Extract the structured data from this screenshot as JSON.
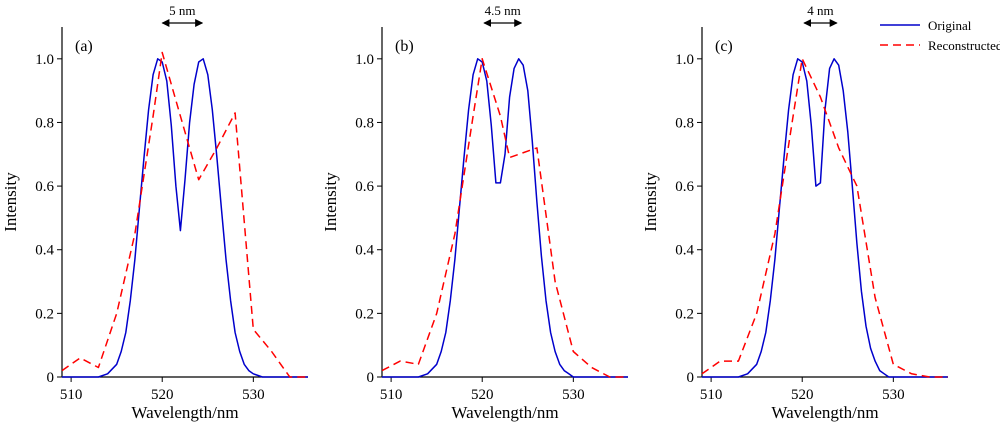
{
  "chart_data": [
    {
      "type": "line",
      "panel_label": "(a)",
      "separation_label": "5 nm",
      "xlabel": "Wavelength/nm",
      "ylabel": "Intensity",
      "xlim": [
        509,
        536
      ],
      "ylim": [
        0,
        1.1
      ],
      "xticks": [
        510,
        520,
        530
      ],
      "yticks": [
        0,
        0.2,
        0.4,
        0.6,
        0.8,
        1.0
      ],
      "ytick_labels": [
        "0",
        "0.2",
        "0.4",
        "0.6",
        "0.8",
        "1.0"
      ],
      "arrow_span": [
        519.8,
        524.6
      ],
      "series": [
        {
          "name": "Original",
          "color": "#0000cc",
          "style": "solid",
          "x": [
            509,
            510,
            511,
            512,
            513,
            514,
            515,
            515.5,
            516,
            516.5,
            517,
            517.5,
            518,
            518.5,
            519,
            519.5,
            520,
            520.5,
            521,
            521.5,
            522,
            522.5,
            523,
            523.5,
            524,
            524.5,
            525,
            525.5,
            526,
            526.5,
            527,
            527.5,
            528,
            528.5,
            529,
            529.5,
            530,
            531,
            532,
            533,
            536
          ],
          "y": [
            0,
            0,
            0,
            0,
            0,
            0.01,
            0.04,
            0.08,
            0.14,
            0.24,
            0.37,
            0.53,
            0.69,
            0.84,
            0.95,
            1.0,
            0.99,
            0.93,
            0.79,
            0.6,
            0.46,
            0.62,
            0.8,
            0.92,
            0.99,
            1.0,
            0.95,
            0.84,
            0.69,
            0.53,
            0.37,
            0.24,
            0.14,
            0.08,
            0.04,
            0.02,
            0.01,
            0,
            0,
            0,
            0
          ]
        },
        {
          "name": "Reconstructed",
          "color": "#ff0000",
          "style": "dashed",
          "x": [
            509,
            511,
            513,
            515,
            517,
            519,
            520,
            522,
            524,
            526,
            528,
            530,
            532,
            534,
            536
          ],
          "y": [
            0.02,
            0.06,
            0.03,
            0.2,
            0.45,
            0.82,
            1.02,
            0.82,
            0.62,
            0.72,
            0.83,
            0.15,
            0.08,
            0,
            0
          ]
        }
      ]
    },
    {
      "type": "line",
      "panel_label": "(b)",
      "separation_label": "4.5 nm",
      "xlabel": "Wavelength/nm",
      "ylabel": "Intensity",
      "xlim": [
        509,
        536
      ],
      "ylim": [
        0,
        1.1
      ],
      "xticks": [
        510,
        520,
        530
      ],
      "yticks": [
        0,
        0.2,
        0.4,
        0.6,
        0.8,
        1.0
      ],
      "ytick_labels": [
        "0",
        "0.2",
        "0.4",
        "0.6",
        "0.8",
        "1.0"
      ],
      "arrow_span": [
        520,
        524.5
      ],
      "series": [
        {
          "name": "Original",
          "color": "#0000cc",
          "style": "solid",
          "x": [
            509,
            510,
            511,
            512,
            513,
            514,
            515,
            515.5,
            516,
            516.5,
            517,
            517.5,
            518,
            518.5,
            519,
            519.5,
            520,
            520.5,
            521,
            521.5,
            522,
            522.5,
            523,
            523.5,
            524,
            524.5,
            525,
            525.5,
            526,
            526.5,
            527,
            527.5,
            528,
            528.5,
            529,
            529.5,
            530,
            531,
            532,
            533,
            536
          ],
          "y": [
            0,
            0,
            0,
            0,
            0,
            0.01,
            0.04,
            0.08,
            0.14,
            0.24,
            0.37,
            0.53,
            0.69,
            0.84,
            0.95,
            1.0,
            0.99,
            0.93,
            0.79,
            0.61,
            0.61,
            0.7,
            0.88,
            0.97,
            1.0,
            0.98,
            0.9,
            0.74,
            0.55,
            0.38,
            0.24,
            0.14,
            0.08,
            0.04,
            0.02,
            0.01,
            0,
            0,
            0,
            0,
            0
          ]
        },
        {
          "name": "Reconstructed",
          "color": "#ff0000",
          "style": "dashed",
          "x": [
            509,
            511,
            513,
            515,
            517,
            519,
            520,
            522,
            523,
            526,
            528,
            530,
            532,
            534,
            536
          ],
          "y": [
            0.02,
            0.05,
            0.04,
            0.2,
            0.45,
            0.82,
            1.0,
            0.82,
            0.69,
            0.72,
            0.3,
            0.08,
            0.03,
            0,
            0
          ]
        }
      ]
    },
    {
      "type": "line",
      "panel_label": "(c)",
      "separation_label": "4 nm",
      "xlabel": "Wavelength/nm",
      "ylabel": "Intensity",
      "xlim": [
        509,
        536
      ],
      "ylim": [
        0,
        1.1
      ],
      "xticks": [
        510,
        520,
        530
      ],
      "yticks": [
        0,
        0.2,
        0.4,
        0.6,
        0.8,
        1.0
      ],
      "ytick_labels": [
        "0",
        "0.2",
        "0.4",
        "0.6",
        "0.8",
        "1.0"
      ],
      "arrow_span": [
        520,
        524
      ],
      "series": [
        {
          "name": "Original",
          "color": "#0000cc",
          "style": "solid",
          "x": [
            509,
            510,
            511,
            512,
            513,
            514,
            515,
            515.5,
            516,
            516.5,
            517,
            517.5,
            518,
            518.5,
            519,
            519.5,
            520,
            520.5,
            521,
            521.5,
            522,
            522.5,
            523,
            523.5,
            524,
            524.5,
            525,
            525.5,
            526,
            526.5,
            527,
            527.5,
            528,
            528.5,
            529,
            529.5,
            530,
            531,
            532,
            533,
            536
          ],
          "y": [
            0,
            0,
            0,
            0,
            0,
            0.01,
            0.04,
            0.08,
            0.14,
            0.24,
            0.37,
            0.53,
            0.69,
            0.84,
            0.95,
            1.0,
            0.99,
            0.93,
            0.79,
            0.6,
            0.61,
            0.84,
            0.97,
            1.0,
            0.98,
            0.9,
            0.77,
            0.6,
            0.42,
            0.27,
            0.16,
            0.09,
            0.05,
            0.02,
            0.01,
            0,
            0,
            0,
            0,
            0,
            0
          ]
        },
        {
          "name": "Reconstructed",
          "color": "#ff0000",
          "style": "dashed",
          "x": [
            509,
            511,
            513,
            515,
            517,
            519,
            520,
            522,
            524,
            526,
            528,
            530,
            532,
            534,
            536
          ],
          "y": [
            0.01,
            0.05,
            0.05,
            0.2,
            0.45,
            0.82,
            1.0,
            0.88,
            0.72,
            0.6,
            0.25,
            0.04,
            0.01,
            0,
            0
          ]
        }
      ]
    }
  ],
  "legend": {
    "position": "top-right",
    "items": [
      {
        "label": "Original",
        "color": "#0000cc",
        "style": "solid"
      },
      {
        "label": "Reconstructed",
        "color": "#ff0000",
        "style": "dashed"
      }
    ]
  }
}
